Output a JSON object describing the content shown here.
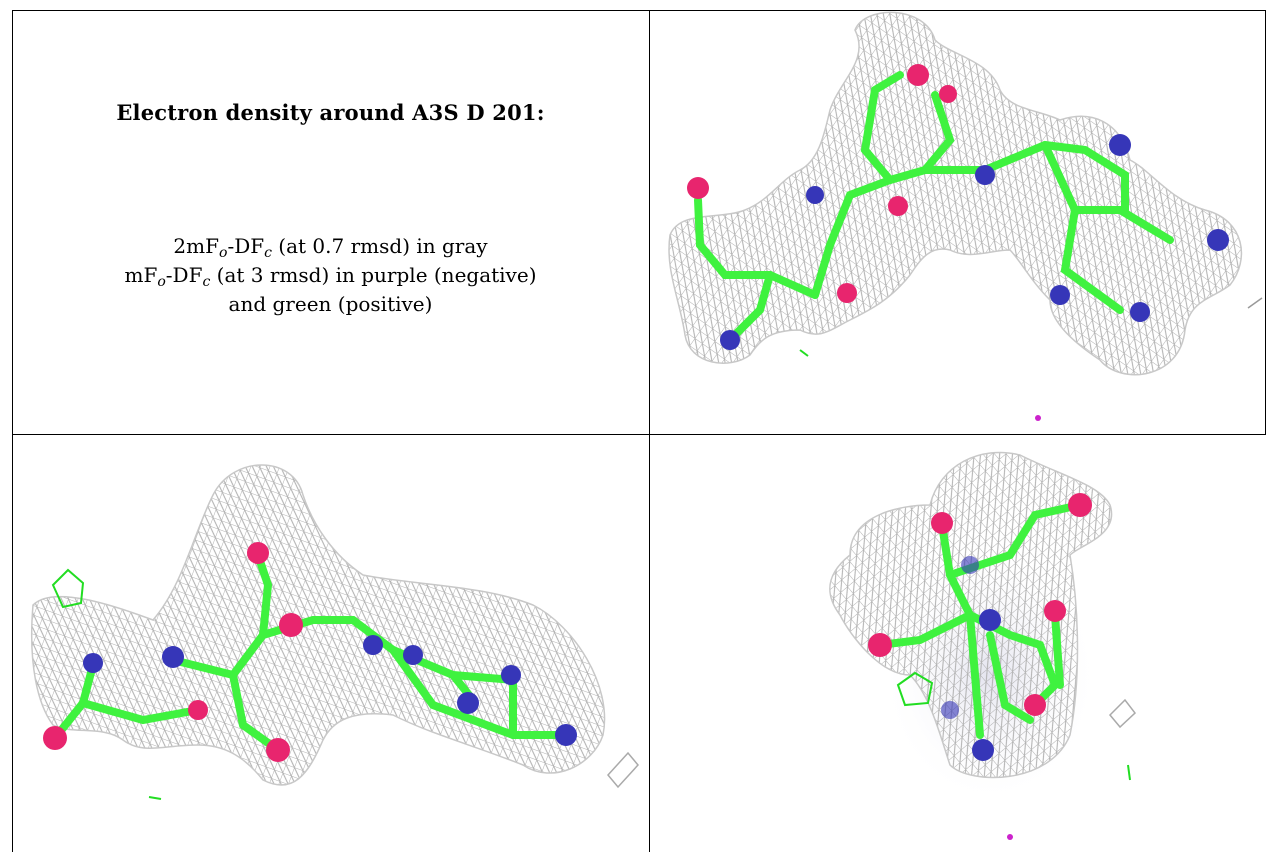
{
  "caption": {
    "title": "Electron density around A3S D 201:",
    "line1_prefix": "2mF",
    "line1_sub1": "o",
    "line1_mid": "-DF",
    "line1_sub2": "c",
    "line1_suffix": " (at 0.7 rmsd) in gray",
    "line2_prefix": "mF",
    "line2_sub1": "o",
    "line2_mid": "-DF",
    "line2_sub2": "c",
    "line2_suffix": " (at 3 rmsd) in purple (negative)",
    "line3": "and green (positive)"
  },
  "colors": {
    "mesh": "#b4b4b4",
    "carbon": "#3ff23f",
    "oxygen": "#e8256e",
    "nitrogen": "#3636b8",
    "positive_density": "#22dd22",
    "negative_density": "#cc22cc"
  },
  "panels": [
    "view-top-right",
    "view-bottom-left",
    "view-bottom-right"
  ]
}
